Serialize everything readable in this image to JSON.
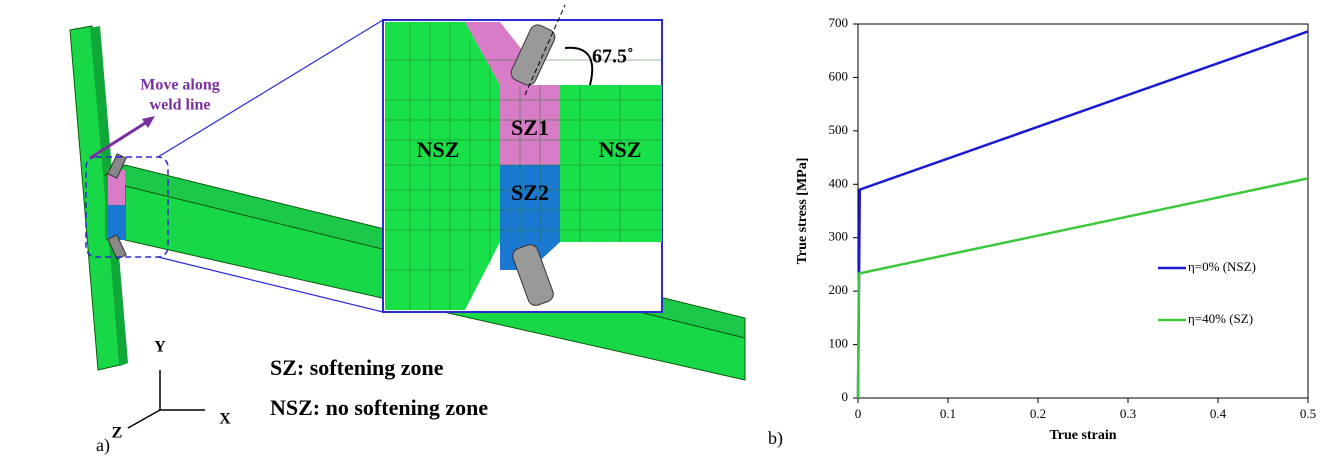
{
  "panel_a": {
    "label": "a)",
    "move_label": [
      "Move along",
      "weld line"
    ],
    "angle": "67.5˚",
    "zones": [
      "NSZ",
      "SZ1",
      "SZ2",
      "NSZ"
    ],
    "axes": [
      "Y",
      "X",
      "Z"
    ],
    "notes": [
      "SZ: softening zone",
      "NSZ: no softening zone"
    ]
  },
  "panel_b": {
    "label": "b)"
  },
  "chart_data": {
    "type": "line",
    "xlabel": "True strain",
    "ylabel": "True stress [MPa]",
    "xlim": [
      0,
      0.5
    ],
    "ylim": [
      0,
      700
    ],
    "xticks": [
      0,
      0.1,
      0.2,
      0.3,
      0.4,
      0.5
    ],
    "yticks": [
      0,
      100,
      200,
      300,
      400,
      500,
      600,
      700
    ],
    "legend": "lower right",
    "series": [
      {
        "name": "η=0% (NSZ)",
        "color": "#1a1ad6",
        "x": [
          0,
          0.002,
          0.5
        ],
        "values": [
          0,
          390,
          686
        ]
      },
      {
        "name": "η=40% (SZ)",
        "color": "#3cc83c",
        "x": [
          0,
          0.001,
          0.5
        ],
        "values": [
          0,
          233,
          411
        ]
      }
    ]
  }
}
